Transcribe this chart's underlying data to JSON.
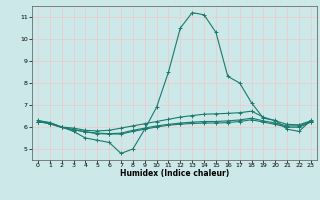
{
  "xlabel": "Humidex (Indice chaleur)",
  "bg_color": "#cce8e8",
  "grid_color": "#f0c8c8",
  "line_color": "#1a7a6e",
  "xlim": [
    -0.5,
    23.5
  ],
  "ylim": [
    4.5,
    11.5
  ],
  "xticks": [
    0,
    1,
    2,
    3,
    4,
    5,
    6,
    7,
    8,
    9,
    10,
    11,
    12,
    13,
    14,
    15,
    16,
    17,
    18,
    19,
    20,
    21,
    22,
    23
  ],
  "yticks": [
    5,
    6,
    7,
    8,
    9,
    10,
    11
  ],
  "line1_x": [
    0,
    1,
    2,
    3,
    4,
    5,
    6,
    7,
    8,
    9,
    10,
    11,
    12,
    13,
    14,
    15,
    16,
    17,
    18,
    19,
    20,
    21,
    22,
    23
  ],
  "line1_y": [
    6.3,
    6.2,
    6.0,
    5.8,
    5.5,
    5.4,
    5.3,
    4.8,
    5.0,
    5.9,
    6.9,
    8.5,
    10.5,
    11.2,
    11.1,
    10.3,
    8.3,
    8.0,
    7.1,
    6.4,
    6.3,
    5.9,
    5.8,
    6.3
  ],
  "line2_x": [
    0,
    1,
    2,
    3,
    4,
    5,
    6,
    7,
    8,
    9,
    10,
    11,
    12,
    13,
    14,
    15,
    16,
    17,
    18,
    19,
    20,
    21,
    22,
    23
  ],
  "line2_y": [
    6.25,
    6.2,
    6.0,
    5.95,
    5.85,
    5.82,
    5.85,
    5.95,
    6.05,
    6.15,
    6.25,
    6.35,
    6.45,
    6.52,
    6.58,
    6.6,
    6.62,
    6.65,
    6.72,
    6.45,
    6.28,
    6.12,
    6.1,
    6.28
  ],
  "line3_x": [
    0,
    1,
    2,
    3,
    4,
    5,
    6,
    7,
    8,
    9,
    10,
    11,
    12,
    13,
    14,
    15,
    16,
    17,
    18,
    19,
    20,
    21,
    22,
    23
  ],
  "line3_y": [
    6.25,
    6.15,
    5.98,
    5.88,
    5.78,
    5.72,
    5.7,
    5.72,
    5.85,
    5.95,
    6.05,
    6.12,
    6.18,
    6.22,
    6.25,
    6.25,
    6.28,
    6.32,
    6.4,
    6.28,
    6.18,
    6.05,
    6.05,
    6.25
  ],
  "line4_x": [
    0,
    1,
    2,
    3,
    4,
    5,
    6,
    7,
    8,
    9,
    10,
    11,
    12,
    13,
    14,
    15,
    16,
    17,
    18,
    19,
    20,
    21,
    22,
    23
  ],
  "line4_y": [
    6.25,
    6.15,
    5.98,
    5.88,
    5.78,
    5.7,
    5.68,
    5.68,
    5.8,
    5.9,
    6.0,
    6.08,
    6.13,
    6.16,
    6.18,
    6.18,
    6.2,
    6.25,
    6.33,
    6.22,
    6.12,
    5.99,
    5.99,
    6.22
  ]
}
